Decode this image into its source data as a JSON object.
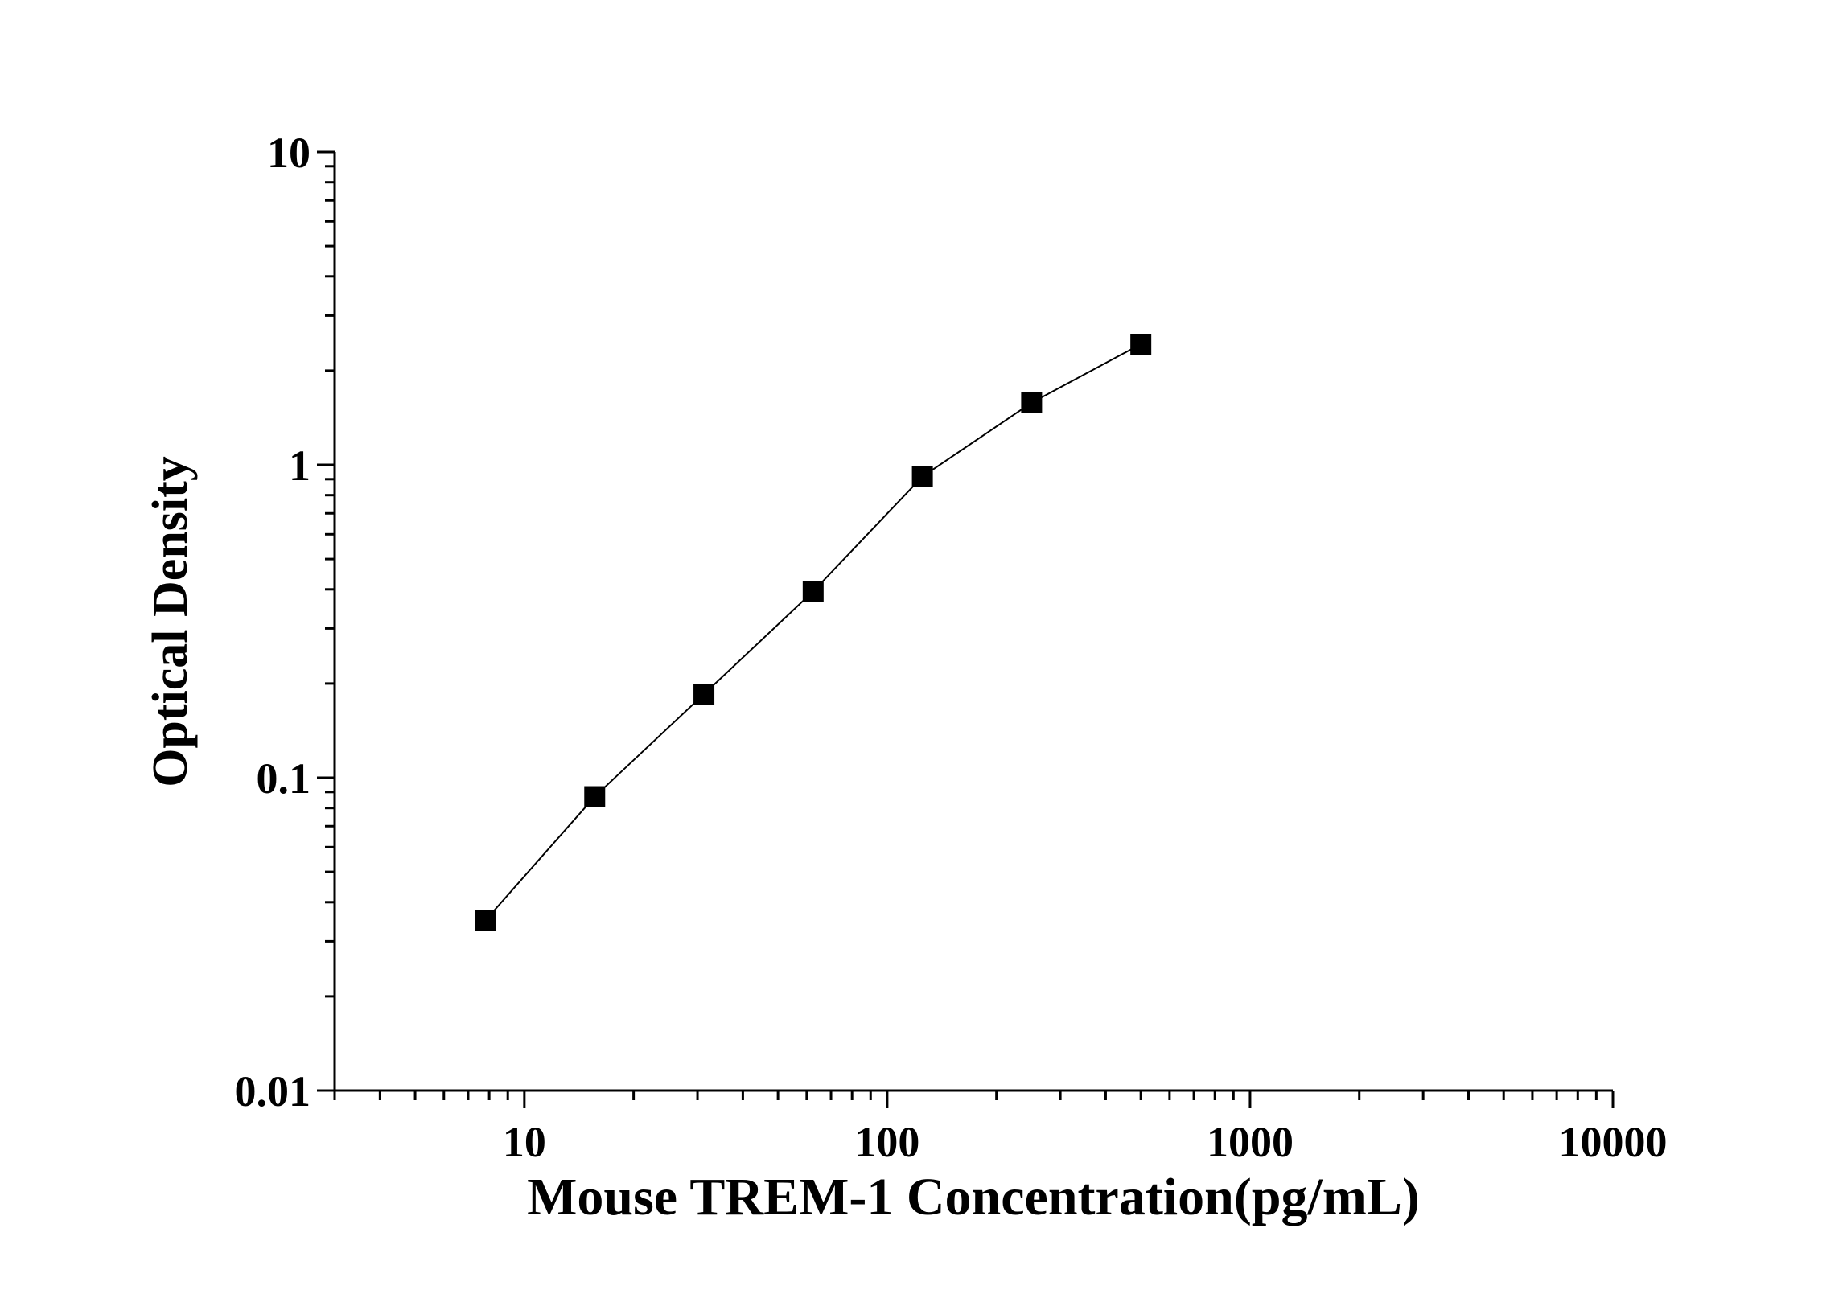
{
  "chart_data": {
    "type": "line",
    "x_label": "Mouse TREM-1 Concentration(pg/mL)",
    "y_label": "Optical Density",
    "x": [
      7.8125,
      15.625,
      31.25,
      62.5,
      125,
      250,
      500
    ],
    "series": [
      {
        "values": [
          0.035,
          0.087,
          0.185,
          0.394,
          0.917,
          1.58,
          2.43
        ],
        "color": "#000000"
      }
    ],
    "xlim": [
      3,
      10000
    ],
    "ylim": [
      0.01,
      10
    ],
    "xticks": [
      10,
      100,
      1000,
      10000
    ],
    "yticks": [
      0.01,
      0.1,
      1,
      10
    ],
    "xscale": "log",
    "yscale": "log",
    "grid": false,
    "marker": "square"
  }
}
